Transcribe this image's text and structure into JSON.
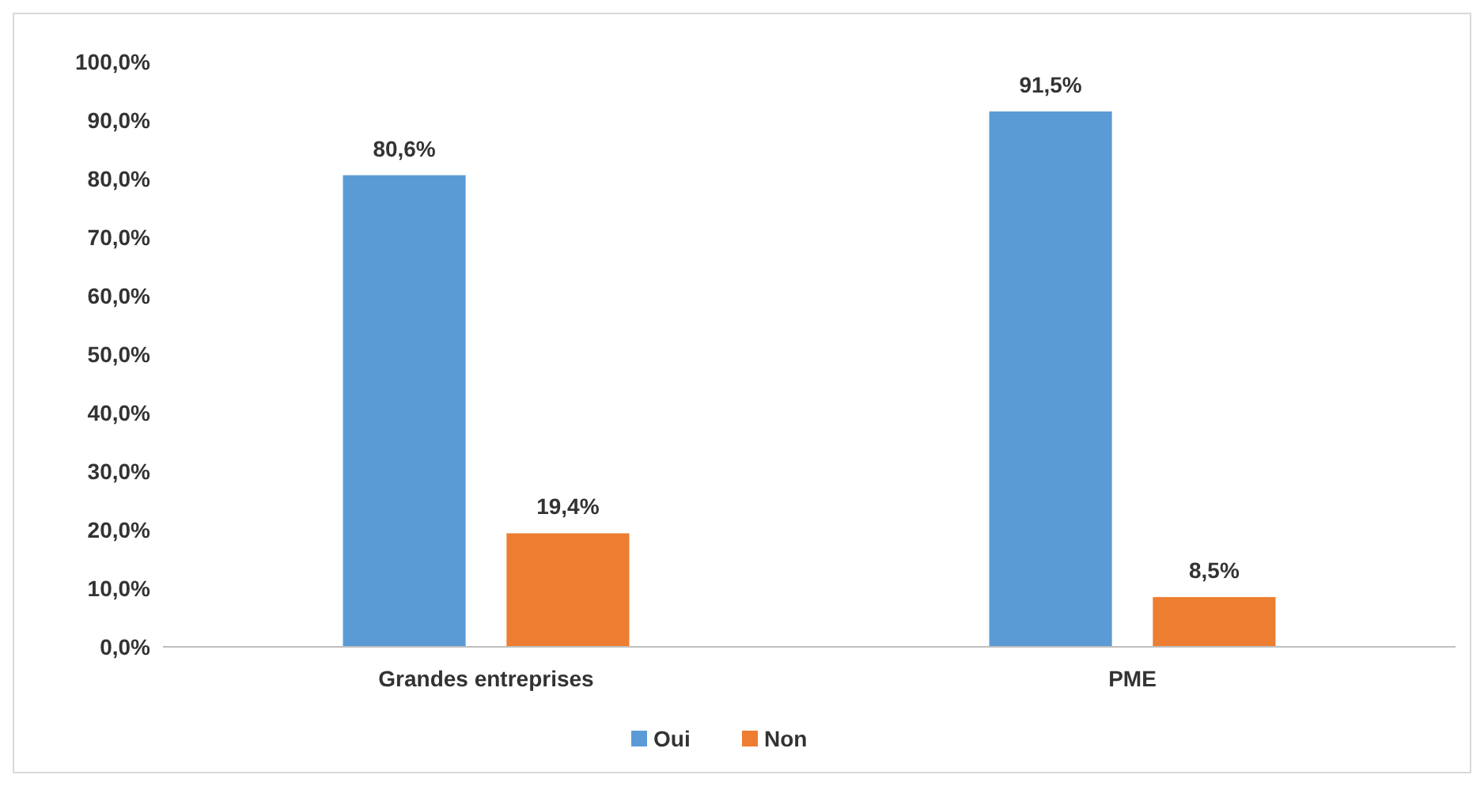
{
  "chart_data": {
    "type": "bar",
    "categories": [
      "Grandes entreprises",
      "PME"
    ],
    "series": [
      {
        "name": "Oui",
        "color": "#5b9bd5",
        "values": [
          80.6,
          91.5
        ],
        "value_labels": [
          "80,6%",
          "91,5%"
        ]
      },
      {
        "name": "Non",
        "color": "#ed7d31",
        "values": [
          19.4,
          8.5
        ],
        "value_labels": [
          "19,4%",
          "8,5%"
        ]
      }
    ],
    "ylim": [
      0,
      100
    ],
    "yticks": [
      {
        "value": 0,
        "label": "0,0%"
      },
      {
        "value": 10,
        "label": "10,0%"
      },
      {
        "value": 20,
        "label": "20,0%"
      },
      {
        "value": 30,
        "label": "30,0%"
      },
      {
        "value": 40,
        "label": "40,0%"
      },
      {
        "value": 50,
        "label": "50,0%"
      },
      {
        "value": 60,
        "label": "60,0%"
      },
      {
        "value": 70,
        "label": "70,0%"
      },
      {
        "value": 80,
        "label": "80,0%"
      },
      {
        "value": 90,
        "label": "90,0%"
      },
      {
        "value": 100,
        "label": "100,0%"
      }
    ],
    "grid": false,
    "legend": "bottom"
  }
}
